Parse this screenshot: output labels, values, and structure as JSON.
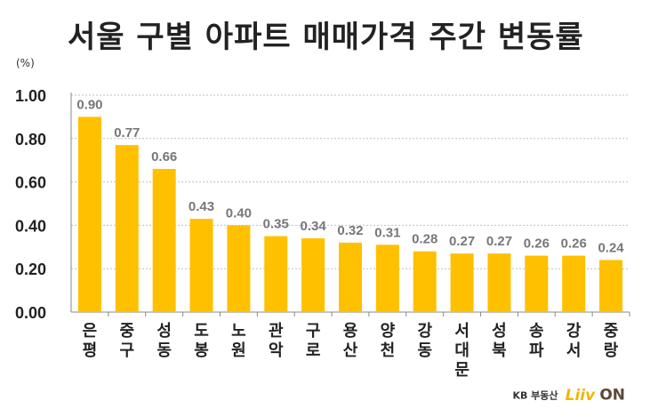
{
  "title": "서울 구별 아파트 매매가격 주간 변동률",
  "brand": {
    "company": "KB 부동산",
    "app_a": "Liiv",
    "app_b": "ON"
  },
  "colors": {
    "bar": "#FFC000",
    "grid": "#BFBFBF",
    "axis": "#888888"
  },
  "chart_data": {
    "type": "bar",
    "unit_label": "(%)",
    "categories": [
      "은평",
      "중구",
      "성동",
      "도봉",
      "노원",
      "관악",
      "구로",
      "용산",
      "양천",
      "강동",
      "서대문",
      "성북",
      "송파",
      "강서",
      "중랑"
    ],
    "values": [
      0.9,
      0.77,
      0.66,
      0.43,
      0.4,
      0.35,
      0.34,
      0.32,
      0.31,
      0.28,
      0.27,
      0.27,
      0.26,
      0.26,
      0.24
    ],
    "value_labels": [
      "0.90",
      "0.77",
      "0.66",
      "0.43",
      "0.40",
      "0.35",
      "0.34",
      "0.32",
      "0.31",
      "0.28",
      "0.27",
      "0.27",
      "0.26",
      "0.26",
      "0.24"
    ],
    "ylim": [
      0,
      1.0
    ],
    "yticks": [
      0,
      0.2,
      0.4,
      0.6,
      0.8,
      1.0
    ],
    "ytick_labels": [
      "0.00",
      "0.20",
      "0.40",
      "0.60",
      "0.80",
      "1.00"
    ],
    "grid": true
  }
}
